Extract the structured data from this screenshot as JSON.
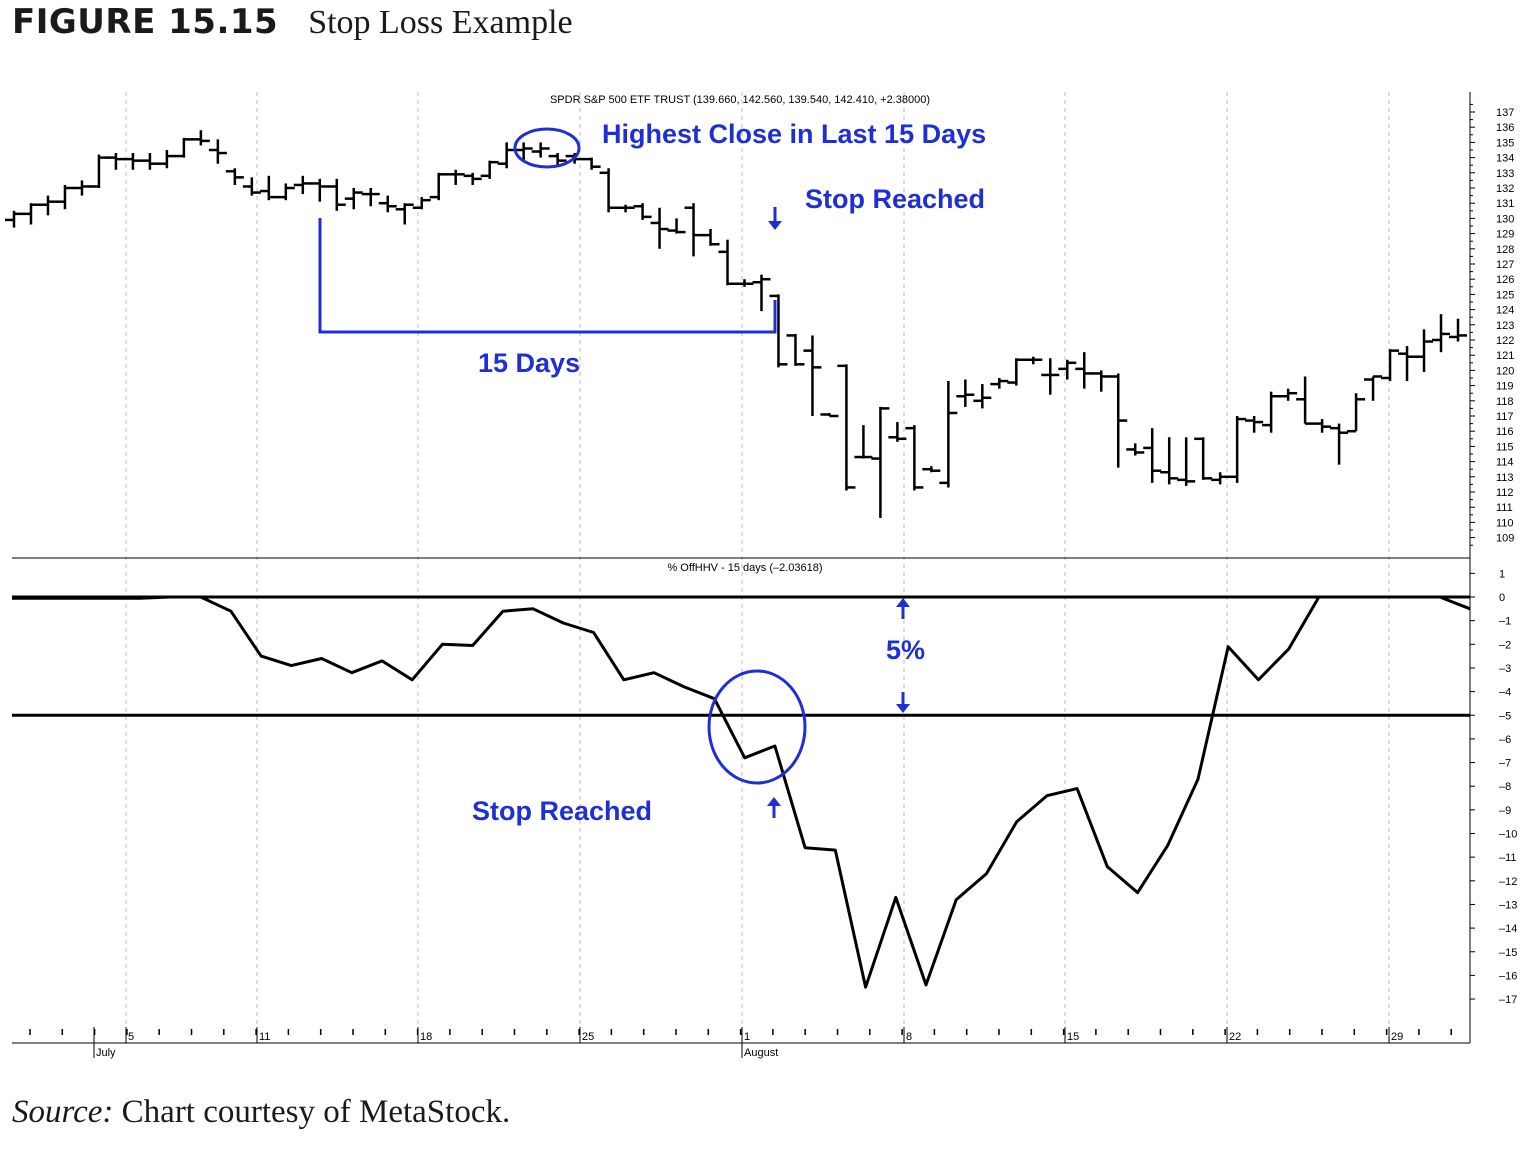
{
  "figure": {
    "label": "FIGURE 15.15",
    "caption": "Stop Loss Example"
  },
  "source": {
    "label": "Source:",
    "text": "Chart courtesy of MetaStock."
  },
  "colors": {
    "annotation": "#1f2fd6",
    "price": "#000000",
    "grid": "#bdbdbd"
  },
  "chart_data": [
    {
      "type": "ohlc",
      "title": "SPDR S&P 500 ETF TRUST (139.660, 142.560, 139.540, 142.410, +2.38000)",
      "ylim": [
        108,
        138
      ],
      "y_ticks": [
        109,
        110,
        111,
        112,
        113,
        114,
        115,
        116,
        117,
        118,
        119,
        120,
        121,
        122,
        123,
        124,
        125,
        126,
        127,
        128,
        129,
        130,
        131,
        132,
        133,
        134,
        135,
        136,
        137
      ],
      "annotations": [
        "Highest Close in Last 15 Days",
        "Stop Reached",
        "15 Days"
      ],
      "bars": [
        {
          "o": 129.9,
          "h": 130.5,
          "l": 129.4,
          "c": 130.3
        },
        {
          "o": 130.3,
          "h": 131.0,
          "l": 129.6,
          "c": 130.9
        },
        {
          "o": 130.9,
          "h": 131.5,
          "l": 130.2,
          "c": 131.1
        },
        {
          "o": 131.1,
          "h": 132.2,
          "l": 130.6,
          "c": 132.0
        },
        {
          "o": 132.0,
          "h": 132.5,
          "l": 131.5,
          "c": 132.1
        },
        {
          "o": 132.1,
          "h": 134.2,
          "l": 132.0,
          "c": 134.0
        },
        {
          "o": 134.0,
          "h": 134.3,
          "l": 133.2,
          "c": 133.9
        },
        {
          "o": 133.9,
          "h": 134.3,
          "l": 133.2,
          "c": 133.8
        },
        {
          "o": 133.8,
          "h": 134.3,
          "l": 133.2,
          "c": 133.6
        },
        {
          "o": 133.6,
          "h": 134.5,
          "l": 133.3,
          "c": 134.1
        },
        {
          "o": 134.1,
          "h": 135.3,
          "l": 134.0,
          "c": 135.2
        },
        {
          "o": 135.2,
          "h": 135.8,
          "l": 134.8,
          "c": 135.1
        },
        {
          "o": 134.5,
          "h": 135.2,
          "l": 133.6,
          "c": 134.3
        },
        {
          "o": 133.1,
          "h": 133.3,
          "l": 132.2,
          "c": 132.7
        },
        {
          "o": 132.1,
          "h": 132.7,
          "l": 131.5,
          "c": 131.7
        },
        {
          "o": 131.8,
          "h": 132.8,
          "l": 131.2,
          "c": 131.4
        },
        {
          "o": 131.4,
          "h": 132.3,
          "l": 131.2,
          "c": 132.0
        },
        {
          "o": 132.2,
          "h": 132.8,
          "l": 131.6,
          "c": 132.3
        },
        {
          "o": 132.3,
          "h": 132.6,
          "l": 131.1,
          "c": 132.1
        },
        {
          "o": 132.1,
          "h": 132.6,
          "l": 130.5,
          "c": 130.9
        },
        {
          "o": 131.3,
          "h": 132.0,
          "l": 130.6,
          "c": 131.7
        },
        {
          "o": 131.6,
          "h": 132.0,
          "l": 130.8,
          "c": 131.6
        },
        {
          "o": 131.0,
          "h": 131.5,
          "l": 130.4,
          "c": 130.8
        },
        {
          "o": 130.6,
          "h": 131.0,
          "l": 129.6,
          "c": 130.9
        },
        {
          "o": 130.7,
          "h": 131.4,
          "l": 130.6,
          "c": 131.2
        },
        {
          "o": 131.4,
          "h": 133.0,
          "l": 131.2,
          "c": 132.9
        },
        {
          "o": 132.9,
          "h": 133.2,
          "l": 132.2,
          "c": 132.9
        },
        {
          "o": 132.8,
          "h": 133.0,
          "l": 132.2,
          "c": 132.6
        },
        {
          "o": 132.8,
          "h": 133.8,
          "l": 132.6,
          "c": 133.7
        },
        {
          "o": 133.6,
          "h": 135.0,
          "l": 133.3,
          "c": 134.5
        },
        {
          "o": 134.5,
          "h": 135.0,
          "l": 133.8,
          "c": 134.6
        },
        {
          "o": 134.4,
          "h": 135.0,
          "l": 134.0,
          "c": 134.6
        },
        {
          "o": 134.1,
          "h": 134.3,
          "l": 133.4,
          "c": 133.8
        },
        {
          "o": 134.1,
          "h": 134.3,
          "l": 133.6,
          "c": 133.9
        },
        {
          "o": 133.9,
          "h": 134.0,
          "l": 133.2,
          "c": 133.4
        },
        {
          "o": 133.0,
          "h": 133.3,
          "l": 130.4,
          "c": 130.7
        },
        {
          "o": 130.7,
          "h": 130.9,
          "l": 130.4,
          "c": 130.7
        },
        {
          "o": 130.8,
          "h": 131.0,
          "l": 129.9,
          "c": 130.1
        },
        {
          "o": 129.7,
          "h": 130.7,
          "l": 128.0,
          "c": 129.3
        },
        {
          "o": 129.2,
          "h": 130.0,
          "l": 129.0,
          "c": 129.1
        },
        {
          "o": 130.7,
          "h": 131.0,
          "l": 127.5,
          "c": 128.9
        },
        {
          "o": 128.9,
          "h": 129.3,
          "l": 128.2,
          "c": 128.3
        },
        {
          "o": 127.8,
          "h": 128.6,
          "l": 125.6,
          "c": 125.7
        },
        {
          "o": 125.7,
          "h": 126.0,
          "l": 125.5,
          "c": 125.7
        },
        {
          "o": 125.8,
          "h": 126.3,
          "l": 123.9,
          "c": 126.0
        },
        {
          "o": 124.9,
          "h": 125.0,
          "l": 120.2,
          "c": 120.4
        },
        {
          "o": 122.3,
          "h": 122.4,
          "l": 120.3,
          "c": 120.4
        },
        {
          "o": 121.3,
          "h": 122.3,
          "l": 117.0,
          "c": 120.2
        },
        {
          "o": 117.1,
          "h": 117.2,
          "l": 117.0,
          "c": 117.0
        },
        {
          "o": 120.3,
          "h": 120.4,
          "l": 112.1,
          "c": 112.3
        },
        {
          "o": 114.3,
          "h": 116.4,
          "l": 114.2,
          "c": 114.3
        },
        {
          "o": 114.2,
          "h": 117.6,
          "l": 110.3,
          "c": 117.5
        },
        {
          "o": 115.6,
          "h": 116.6,
          "l": 115.3,
          "c": 115.5
        },
        {
          "o": 116.2,
          "h": 116.4,
          "l": 112.1,
          "c": 112.3
        },
        {
          "o": 113.5,
          "h": 113.7,
          "l": 113.3,
          "c": 113.4
        },
        {
          "o": 112.6,
          "h": 119.3,
          "l": 112.3,
          "c": 117.2
        },
        {
          "o": 118.3,
          "h": 119.4,
          "l": 117.6,
          "c": 118.4
        },
        {
          "o": 118.0,
          "h": 119.1,
          "l": 117.5,
          "c": 118.2
        },
        {
          "o": 119.1,
          "h": 119.5,
          "l": 118.8,
          "c": 119.3
        },
        {
          "o": 119.2,
          "h": 120.8,
          "l": 119.0,
          "c": 120.7
        },
        {
          "o": 120.7,
          "h": 120.9,
          "l": 120.4,
          "c": 120.7
        },
        {
          "o": 119.7,
          "h": 120.8,
          "l": 118.4,
          "c": 119.7
        },
        {
          "o": 120.1,
          "h": 120.7,
          "l": 119.4,
          "c": 120.5
        },
        {
          "o": 120.1,
          "h": 121.2,
          "l": 118.8,
          "c": 119.8
        },
        {
          "o": 119.8,
          "h": 120.0,
          "l": 118.6,
          "c": 119.6
        },
        {
          "o": 119.6,
          "h": 119.8,
          "l": 113.6,
          "c": 116.7
        },
        {
          "o": 114.8,
          "h": 115.2,
          "l": 114.4,
          "c": 114.6
        },
        {
          "o": 114.9,
          "h": 116.2,
          "l": 112.6,
          "c": 113.4
        },
        {
          "o": 113.3,
          "h": 115.6,
          "l": 112.5,
          "c": 112.9
        },
        {
          "o": 112.8,
          "h": 115.6,
          "l": 112.4,
          "c": 112.7
        },
        {
          "o": 115.5,
          "h": 115.6,
          "l": 112.8,
          "c": 112.9
        },
        {
          "o": 112.8,
          "h": 113.3,
          "l": 112.5,
          "c": 113.0
        },
        {
          "o": 113.0,
          "h": 117.0,
          "l": 112.6,
          "c": 116.8
        },
        {
          "o": 116.7,
          "h": 117.0,
          "l": 115.9,
          "c": 116.6
        },
        {
          "o": 116.4,
          "h": 118.6,
          "l": 115.9,
          "c": 118.3
        },
        {
          "o": 118.3,
          "h": 118.8,
          "l": 118.0,
          "c": 118.5
        },
        {
          "o": 118.1,
          "h": 119.6,
          "l": 116.5,
          "c": 116.5
        },
        {
          "o": 116.5,
          "h": 116.8,
          "l": 115.9,
          "c": 116.3
        },
        {
          "o": 116.2,
          "h": 116.5,
          "l": 113.8,
          "c": 115.9
        },
        {
          "o": 116.0,
          "h": 118.5,
          "l": 116.0,
          "c": 118.1
        },
        {
          "o": 119.4,
          "h": 119.6,
          "l": 118.0,
          "c": 119.6
        },
        {
          "o": 119.5,
          "h": 121.4,
          "l": 119.3,
          "c": 121.3
        },
        {
          "o": 121.1,
          "h": 121.6,
          "l": 119.3,
          "c": 120.9
        },
        {
          "o": 120.9,
          "h": 122.7,
          "l": 119.9,
          "c": 121.9
        },
        {
          "o": 122.0,
          "h": 123.7,
          "l": 121.2,
          "c": 122.4
        },
        {
          "o": 122.2,
          "h": 123.4,
          "l": 121.9,
          "c": 122.3
        }
      ]
    },
    {
      "type": "line",
      "title": "% OffHHV - 15 days (–2.03618)",
      "ylim": [
        -17.8,
        1.5
      ],
      "y_ticks": [
        1,
        0,
        -1,
        -2,
        -3,
        -4,
        -5,
        -6,
        -7,
        -8,
        -9,
        -10,
        -11,
        -12,
        -13,
        -14,
        -15,
        -16,
        -17
      ],
      "reference_lines": [
        0,
        -5
      ],
      "annotations": [
        "5%",
        "Stop Reached"
      ],
      "x": [
        0,
        1,
        2,
        3,
        4,
        5,
        6,
        7,
        8,
        9,
        10,
        11,
        12,
        13,
        14,
        15,
        16,
        17,
        18,
        19,
        20,
        21,
        22,
        23,
        24,
        25,
        26,
        27,
        28,
        29,
        30,
        31,
        32,
        33,
        34,
        35,
        36,
        37,
        38,
        39,
        40,
        41,
        42,
        43,
        44,
        45
      ],
      "values": [
        -0.05,
        -0.05,
        0,
        0,
        -0.6,
        -2.5,
        -2.9,
        -2.6,
        -3.2,
        -2.7,
        -3.5,
        -2.0,
        -2.05,
        -0.6,
        -0.5,
        -1.1,
        -1.5,
        -3.5,
        -3.2,
        -3.8,
        -4.3,
        -6.8,
        -6.3,
        -10.6,
        -10.7,
        -16.5,
        -12.7,
        -16.4,
        -12.8,
        -11.7,
        -9.5,
        -8.4,
        -8.1,
        -11.4,
        -12.5,
        -10.5,
        -7.7,
        -2.1,
        -3.5,
        -2.2,
        0,
        0,
        0,
        0,
        0,
        -0.5
      ]
    }
  ],
  "x_axis": {
    "day_labels": [
      "5",
      "11",
      "18",
      "25",
      "1",
      "8",
      "15",
      "22",
      "29"
    ],
    "month_labels": [
      "July",
      "August"
    ]
  }
}
